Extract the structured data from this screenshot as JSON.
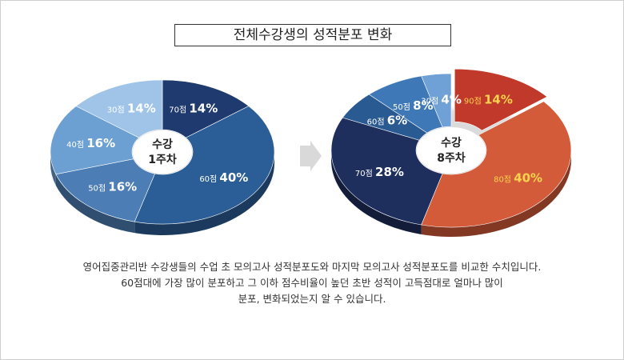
{
  "title": "전체수강생의 성적분포 변화",
  "chart_data": [
    {
      "type": "pie",
      "center_label": [
        "수강",
        "1주차"
      ],
      "slices": [
        {
          "label": "70점",
          "value": 14,
          "value_text": "14%",
          "color": "#1f3a6e"
        },
        {
          "label": "60점",
          "value": 40,
          "value_text": "40%",
          "color": "#2b5d96"
        },
        {
          "label": "50점",
          "value": 16,
          "value_text": "16%",
          "color": "#4c7db4"
        },
        {
          "label": "40점",
          "value": 16,
          "value_text": "16%",
          "color": "#6c9fd2"
        },
        {
          "label": "30점",
          "value": 14,
          "value_text": "14%",
          "color": "#9fc4e8"
        }
      ]
    },
    {
      "type": "pie",
      "center_label": [
        "수강",
        "8주차"
      ],
      "slices": [
        {
          "label": "90점",
          "value": 14,
          "value_text": "14%",
          "color": "#c0392b",
          "exploded": true,
          "label_color": "#ffd34d"
        },
        {
          "label": "80점",
          "value": 40,
          "value_text": "40%",
          "color": "#d35b3a",
          "label_color": "#ffd34d"
        },
        {
          "label": "70점",
          "value": 28,
          "value_text": "28%",
          "color": "#1e2f5e"
        },
        {
          "label": "60점",
          "value": 6,
          "value_text": "6%",
          "color": "#2a5a92"
        },
        {
          "label": "50점",
          "value": 8,
          "value_text": "8%",
          "color": "#3f78b6"
        },
        {
          "label": "30점",
          "value": 4,
          "value_text": "4%",
          "color": "#6fa0d6"
        }
      ]
    }
  ],
  "description": [
    "영어집중관리반 수강생들의 수업 초 모의고사 성적분포도와 마지막 모의고사 성적분포도를 비교한 수치입니다.",
    "60점대에 가장 많이 분포하고 그 이하 점수비율이 높던 초반 성적이 고득점대로 얼마나 많이",
    "분포, 변화되었는지 알 수 있습니다."
  ]
}
